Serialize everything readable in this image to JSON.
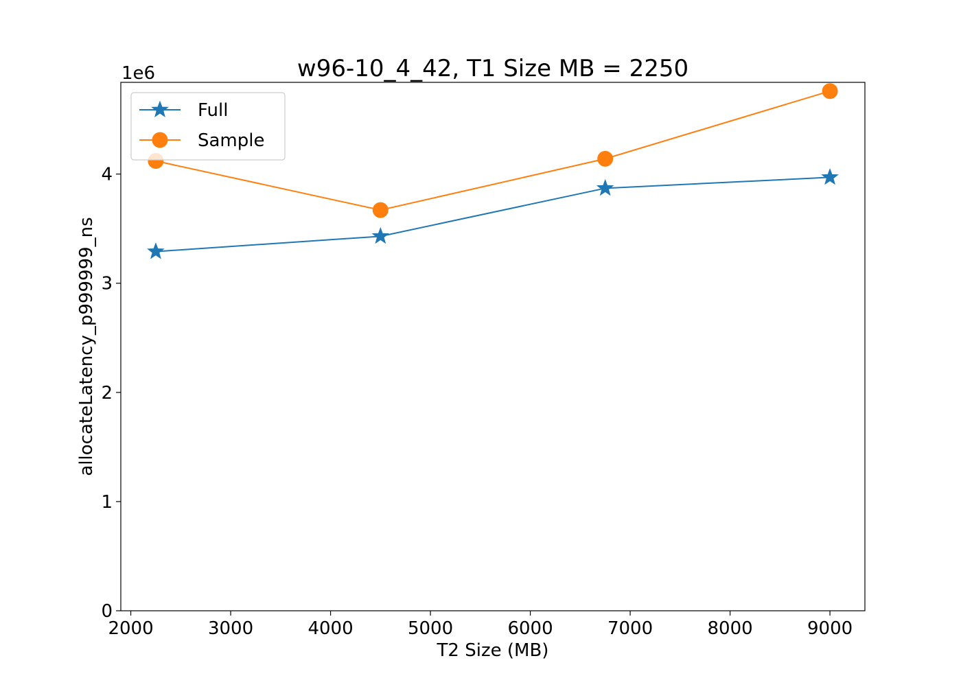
{
  "chart_data": {
    "type": "line",
    "title": "w96-10_4_42, T1 Size MB = 2250",
    "xlabel": "T2 Size (MB)",
    "ylabel": "allocateLatency_p999999_ns",
    "y_offset_label": "1e6",
    "y_scale_factor": 1000000,
    "xlim": [
      1900,
      9350
    ],
    "ylim": [
      0,
      4840000
    ],
    "x_ticks": [
      2000,
      3000,
      4000,
      5000,
      6000,
      7000,
      8000,
      9000
    ],
    "x_tick_labels": [
      "2000",
      "3000",
      "4000",
      "5000",
      "6000",
      "7000",
      "8000",
      "9000"
    ],
    "y_ticks": [
      0,
      1000000,
      2000000,
      3000000,
      4000000
    ],
    "y_tick_labels": [
      "0",
      "1",
      "2",
      "3",
      "4"
    ],
    "grid": false,
    "legend_position": "upper-left",
    "x": [
      2250,
      4500,
      6750,
      9000
    ],
    "series": [
      {
        "name": "Full",
        "marker": "star",
        "color": "#1f77b4",
        "values": [
          3290000,
          3430000,
          3870000,
          3970000
        ]
      },
      {
        "name": "Sample",
        "marker": "circle",
        "color": "#ff7f0e",
        "values": [
          4120000,
          3670000,
          4140000,
          4760000
        ]
      }
    ]
  }
}
